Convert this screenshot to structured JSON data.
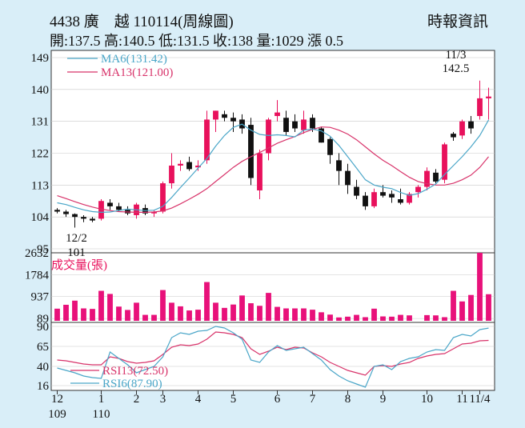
{
  "header": {
    "title": "4438 廣　越 110114(周線圖)",
    "source": "時報資訊",
    "quote": "開:137.5 高:140.5 低:131.5 收:138 量:1029 漲 0.5"
  },
  "colors": {
    "background": "#d9eef8",
    "plot_bg": "#ffffff",
    "up": "#e8115c",
    "down": "#111111",
    "ma6": "#4aa6c8",
    "ma13": "#d8336a",
    "volume": "#e8117a",
    "rsi13": "#d8336a",
    "rsi6": "#4aa6c8",
    "grid": "#c8c8c8"
  },
  "chart_data": [
    {
      "type": "candlestick",
      "ylim": [
        95,
        149
      ],
      "yticks": [
        95,
        104,
        113,
        122,
        131,
        140,
        149
      ],
      "legend": [
        {
          "name": "MA6(131.42)",
          "color_key": "ma6"
        },
        {
          "name": "MA13(121.00)",
          "color_key": "ma13"
        }
      ],
      "annotations": [
        {
          "text": "11/3",
          "at_index": 46
        },
        {
          "text": "142.5",
          "at_index": 46,
          "value": 142.5
        },
        {
          "text": "12/2",
          "at_index": 2
        },
        {
          "text": "101",
          "at_index": 2,
          "value": 101
        }
      ],
      "x_labels": [
        {
          "text": "12",
          "sub": "109",
          "at_index": 0
        },
        {
          "text": "1",
          "sub": "110",
          "at_index": 5
        },
        {
          "text": "2",
          "at_index": 9
        },
        {
          "text": "3",
          "at_index": 12
        },
        {
          "text": "4",
          "at_index": 16
        },
        {
          "text": "5",
          "at_index": 20
        },
        {
          "text": "6",
          "at_index": 25
        },
        {
          "text": "7",
          "at_index": 29
        },
        {
          "text": "8",
          "at_index": 33
        },
        {
          "text": "9",
          "at_index": 37
        },
        {
          "text": "10",
          "at_index": 42
        },
        {
          "text": "11",
          "at_index": 46
        },
        {
          "text": "11/4",
          "at_index": 48
        }
      ],
      "ohlc": [
        [
          106,
          106.5,
          105,
          105.5
        ],
        [
          105.5,
          106,
          104,
          104.8
        ],
        [
          104.8,
          105,
          101,
          104
        ],
        [
          104,
          104.5,
          102.5,
          103.5
        ],
        [
          103.5,
          104,
          102.5,
          103
        ],
        [
          103.5,
          109,
          103,
          108.5
        ],
        [
          108,
          109,
          106,
          107
        ],
        [
          107,
          108,
          105.5,
          106
        ],
        [
          106,
          107,
          104.5,
          105
        ],
        [
          104.5,
          108,
          103.5,
          107.5
        ],
        [
          106.5,
          107.5,
          104.5,
          105
        ],
        [
          105,
          106,
          104,
          105.5
        ],
        [
          105.5,
          114,
          105,
          113.5
        ],
        [
          113.5,
          122,
          112,
          118.5
        ],
        [
          118.5,
          120,
          117,
          119
        ],
        [
          119.5,
          121,
          117,
          117.5
        ],
        [
          118,
          120,
          117,
          118.5
        ],
        [
          120,
          134,
          119,
          131.5
        ],
        [
          131.5,
          134,
          128,
          134
        ],
        [
          133,
          134,
          131,
          132
        ],
        [
          132,
          133.5,
          128,
          131
        ],
        [
          131.5,
          133,
          127.5,
          129
        ],
        [
          130,
          132,
          113,
          115
        ],
        [
          111.5,
          123,
          109,
          122
        ],
        [
          122,
          132,
          120,
          131.5
        ],
        [
          132.5,
          137,
          131,
          133.5
        ],
        [
          132,
          134,
          127,
          128
        ],
        [
          131,
          133,
          128,
          129
        ],
        [
          128.5,
          134,
          127.5,
          131.5
        ],
        [
          132,
          133,
          128,
          129
        ],
        [
          129,
          129.5,
          125,
          125
        ],
        [
          126,
          126.5,
          119,
          121.5
        ],
        [
          120,
          122,
          113,
          117
        ],
        [
          117,
          119,
          110.5,
          113
        ],
        [
          112.5,
          114.5,
          109,
          110
        ],
        [
          110,
          111,
          106,
          107
        ],
        [
          107,
          112,
          106.5,
          111
        ],
        [
          111,
          113,
          109.5,
          110
        ],
        [
          110.5,
          111.5,
          108,
          109.5
        ],
        [
          109,
          112,
          107.5,
          108
        ],
        [
          108,
          111,
          107.5,
          110.5
        ],
        [
          111,
          113,
          109.5,
          112.5
        ],
        [
          112.5,
          118,
          111.5,
          117
        ],
        [
          116.5,
          117.5,
          113.5,
          114
        ],
        [
          114.5,
          125,
          113.5,
          124.5
        ],
        [
          127.5,
          128,
          125.5,
          126.5
        ],
        [
          127,
          131.5,
          126,
          131
        ],
        [
          131,
          132.5,
          127.5,
          129
        ],
        [
          132.5,
          142.5,
          131.5,
          137.5
        ],
        [
          137.5,
          140.5,
          131.5,
          138
        ]
      ],
      "ma6": [
        108,
        107.5,
        106.7,
        106,
        105.5,
        105.3,
        105.4,
        105.8,
        106.2,
        106,
        105.8,
        105.9,
        107,
        109.5,
        112.3,
        115,
        117.8,
        120.5,
        124,
        127,
        129.3,
        130.2,
        128.5,
        127.3,
        127,
        127.2,
        127,
        126.6,
        128.5,
        128.8,
        128.3,
        126.8,
        124.2,
        121,
        117.8,
        114.5,
        113,
        112.4,
        112,
        110.9,
        110.1,
        110.6,
        111.8,
        113.3,
        116,
        118.5,
        121,
        123.8,
        127,
        131.4
      ],
      "ma13": [
        110,
        109.2,
        108.3,
        107.5,
        106.8,
        106.2,
        105.8,
        105.5,
        105.4,
        105.3,
        105.3,
        105.4,
        105.7,
        106.5,
        107.7,
        109,
        110.4,
        112,
        114,
        116,
        118,
        119.7,
        121,
        122.2,
        123.5,
        124.8,
        125.8,
        126.7,
        127.8,
        128.7,
        129.4,
        129.3,
        128.5,
        127.4,
        125.8,
        123.8,
        121.8,
        120,
        118.5,
        116.8,
        115.2,
        114,
        113.4,
        113,
        113,
        113.5,
        114.5,
        115.8,
        118,
        121
      ]
    },
    {
      "type": "bar",
      "title": "成交量(張)",
      "yticks": [
        89,
        937,
        1784,
        2632
      ],
      "ylim": [
        0,
        2632
      ],
      "values": [
        470,
        620,
        780,
        480,
        460,
        1160,
        1040,
        550,
        420,
        700,
        230,
        230,
        1190,
        700,
        560,
        400,
        430,
        1500,
        700,
        500,
        630,
        980,
        680,
        580,
        1080,
        540,
        480,
        480,
        480,
        430,
        330,
        240,
        130,
        160,
        230,
        140,
        470,
        170,
        160,
        230,
        210,
        0,
        220,
        210,
        140,
        1160,
        750,
        1000,
        2632,
        1029
      ]
    },
    {
      "type": "line",
      "ylim": [
        12,
        94
      ],
      "yticks": [
        16,
        40,
        65,
        90
      ],
      "legend": [
        {
          "name": "RSI13(72.50)",
          "color_key": "rsi13"
        },
        {
          "name": "RSI6(87.90)",
          "color_key": "rsi6"
        }
      ],
      "rsi13": [
        48,
        47,
        45,
        43,
        42,
        42,
        52,
        50,
        46,
        44,
        45,
        47,
        55,
        64,
        67,
        66,
        68,
        74,
        83,
        82,
        80,
        76,
        62,
        55,
        59,
        64,
        61,
        64,
        63,
        57,
        52,
        45,
        40,
        35,
        32,
        29,
        40,
        41,
        40,
        43,
        45,
        50,
        53,
        55,
        56,
        62,
        68,
        69,
        72,
        72.5
      ],
      "rsi6": [
        38,
        35,
        32,
        28,
        26,
        25,
        58,
        50,
        42,
        32,
        36,
        40,
        52,
        76,
        82,
        80,
        84,
        85,
        90,
        88,
        82,
        74,
        48,
        45,
        58,
        66,
        60,
        62,
        64,
        56,
        48,
        36,
        28,
        22,
        18,
        14,
        40,
        42,
        36,
        46,
        50,
        52,
        58,
        61,
        60,
        76,
        80,
        78,
        86,
        87.9
      ]
    }
  ]
}
